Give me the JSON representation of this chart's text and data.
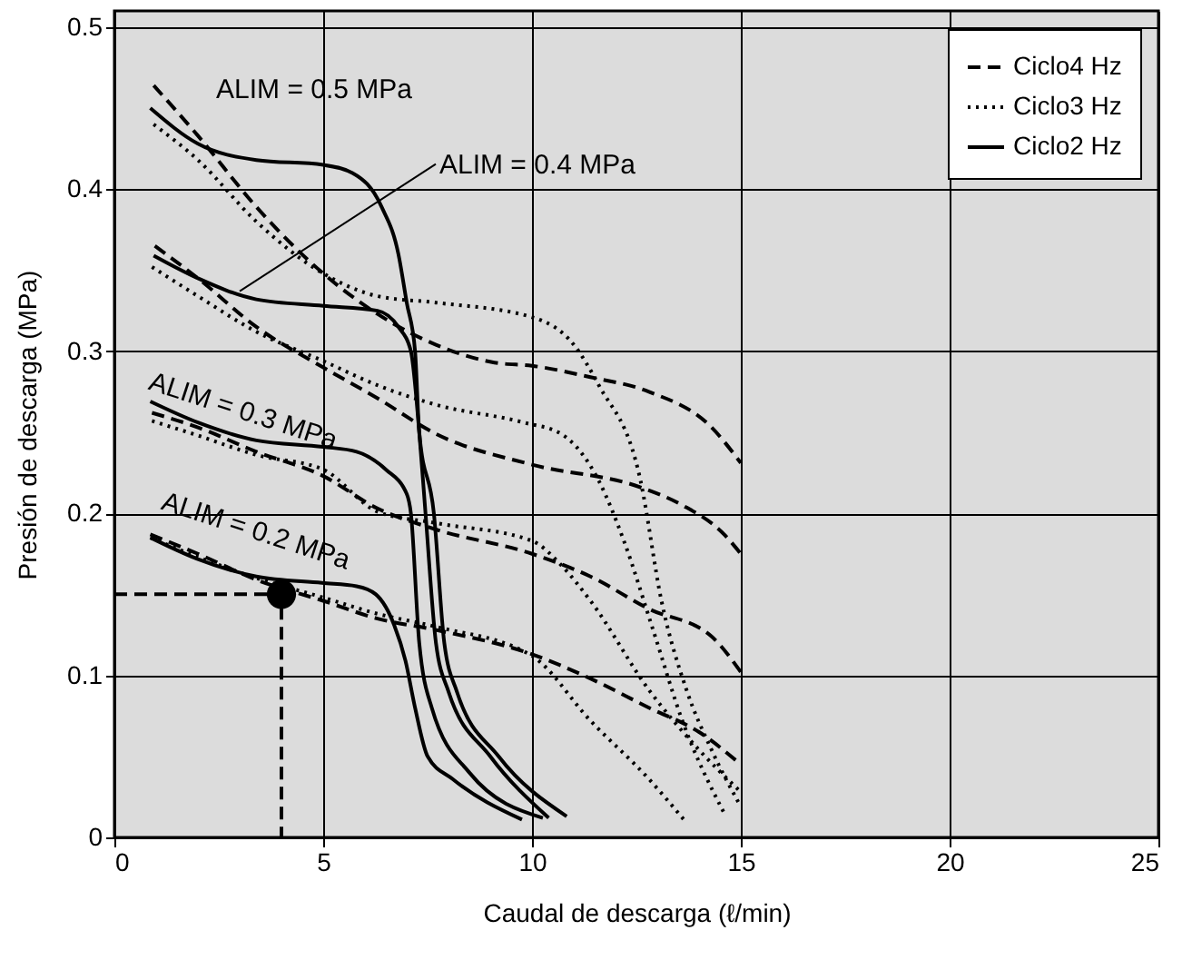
{
  "chart_data": {
    "type": "line",
    "xlabel": "Caudal de descarga (ℓ/min)",
    "ylabel": "Presión de descarga (MPa)",
    "xlim": [
      0,
      25
    ],
    "xticks": [
      0,
      5,
      10,
      15,
      20,
      25
    ],
    "ylim": [
      0,
      0.51
    ],
    "yticks": [
      0,
      0.1,
      0.2,
      0.3,
      0.4,
      0.5
    ],
    "grid": true,
    "legend": "top right",
    "series": [
      {
        "name": "Ciclo4 Hz",
        "color": "#000000",
        "line_style": "dashed",
        "x": [
          0.94,
          2,
          3.4,
          5,
          6.3,
          7.7,
          9.1,
          10,
          11.4,
          12.8,
          14.3,
          15
        ],
        "values": [
          0.464,
          0.433,
          0.389,
          0.348,
          0.323,
          0.304,
          0.293,
          0.291,
          0.284,
          0.275,
          0.253,
          0.231
        ]
      },
      {
        "color": "#000000",
        "line_style": "dashed",
        "x": [
          0.97,
          2,
          3.4,
          5,
          6.3,
          7.7,
          10,
          12.6,
          13.6,
          14.6,
          15
        ],
        "values": [
          0.365,
          0.345,
          0.315,
          0.29,
          0.271,
          0.249,
          0.23,
          0.216,
          0.205,
          0.187,
          0.175
        ]
      },
      {
        "color": "#000000",
        "line_style": "dashed",
        "x": [
          0.9,
          2,
          3.4,
          5,
          6.3,
          7.7,
          10,
          11.4,
          12.8,
          14.3,
          15
        ],
        "values": [
          0.262,
          0.253,
          0.238,
          0.223,
          0.203,
          0.19,
          0.175,
          0.161,
          0.141,
          0.124,
          0.102
        ]
      },
      {
        "color": "#000000",
        "line_style": "dashed",
        "x": [
          0.86,
          2,
          3.4,
          5,
          6.3,
          7.7,
          10,
          11.4,
          12.8,
          14,
          15
        ],
        "values": [
          0.187,
          0.175,
          0.159,
          0.146,
          0.135,
          0.128,
          0.113,
          0.098,
          0.08,
          0.065,
          0.045
        ]
      },
      {
        "name": "Ciclo3 Hz",
        "color": "#000000",
        "line_style": "dotted",
        "x": [
          0.94,
          2,
          3.4,
          5,
          6.3,
          7.7,
          10,
          11,
          11.6,
          12.6,
          13.1,
          13.7,
          14.3,
          15
        ],
        "values": [
          0.44,
          0.418,
          0.38,
          0.348,
          0.334,
          0.33,
          0.321,
          0.304,
          0.279,
          0.22,
          0.146,
          0.091,
          0.054,
          0.019
        ]
      },
      {
        "color": "#000000",
        "line_style": "dotted",
        "x": [
          0.9,
          2,
          3.4,
          5,
          6.3,
          7.7,
          9.8,
          10.7,
          11.6,
          12.2,
          12.9,
          13.6,
          14.6
        ],
        "values": [
          0.352,
          0.334,
          0.312,
          0.294,
          0.279,
          0.267,
          0.256,
          0.249,
          0.22,
          0.183,
          0.128,
          0.072,
          0.015
        ]
      },
      {
        "color": "#000000",
        "line_style": "dotted",
        "x": [
          0.9,
          2,
          3.4,
          5,
          6.3,
          7.7,
          10,
          10.7,
          11.4,
          12.8,
          14,
          15
        ],
        "values": [
          0.257,
          0.248,
          0.236,
          0.227,
          0.201,
          0.194,
          0.183,
          0.168,
          0.146,
          0.091,
          0.054,
          0.028
        ]
      },
      {
        "color": "#000000",
        "line_style": "dotted",
        "x": [
          0.86,
          2,
          3.4,
          5,
          6.3,
          7.7,
          10,
          11.4,
          12.8,
          13.7
        ],
        "values": [
          0.185,
          0.173,
          0.16,
          0.148,
          0.138,
          0.13,
          0.112,
          0.072,
          0.036,
          0.009
        ]
      },
      {
        "name": "Ciclo2 Hz",
        "color": "#000000",
        "line_style": "solid",
        "x": [
          0.86,
          2,
          3.4,
          5,
          5.7,
          6.4,
          6.8,
          7,
          7.2,
          7.3,
          7.65,
          7.9,
          8.2,
          9.2,
          10.83
        ],
        "values": [
          0.45,
          0.428,
          0.418,
          0.415,
          0.41,
          0.389,
          0.36,
          0.33,
          0.3,
          0.25,
          0.2,
          0.12,
          0.09,
          0.05,
          0.013
        ]
      },
      {
        "color": "#000000",
        "line_style": "solid",
        "x": [
          0.94,
          2,
          3.4,
          5,
          6.3,
          6.8,
          7.1,
          7.3,
          7.45,
          7.7,
          8,
          9,
          10.4
        ],
        "values": [
          0.359,
          0.345,
          0.332,
          0.328,
          0.325,
          0.315,
          0.3,
          0.25,
          0.2,
          0.12,
          0.09,
          0.05,
          0.012
        ]
      },
      {
        "color": "#000000",
        "line_style": "solid",
        "x": [
          0.86,
          2,
          3.4,
          5,
          5.8,
          6.5,
          7,
          7.1,
          7.3,
          7.6,
          8.5,
          10.26
        ],
        "values": [
          0.269,
          0.256,
          0.245,
          0.241,
          0.238,
          0.227,
          0.212,
          0.2,
          0.12,
          0.08,
          0.04,
          0.012
        ]
      },
      {
        "color": "#000000",
        "line_style": "solid",
        "x": [
          0.86,
          1.97,
          3.4,
          4.97,
          5.8,
          6.26,
          6.7,
          6.97,
          7.2,
          7.5,
          8.1,
          9.76
        ],
        "values": [
          0.185,
          0.172,
          0.161,
          0.157,
          0.155,
          0.15,
          0.131,
          0.109,
          0.08,
          0.05,
          0.036,
          0.011
        ]
      },
      {
        "type": "line",
        "color": "#000000",
        "line_style": "dashed",
        "x": [
          0,
          4,
          4
        ],
        "values": [
          0.15,
          0.15,
          0
        ]
      },
      {
        "type": "scatter",
        "color": "#000000",
        "marker": "circle",
        "x": [
          4
        ],
        "values": [
          0.15
        ]
      }
    ],
    "annotations": [
      "ALIM = 0.5 MPa",
      {
        "text": "ALIM = 0.4 MPa",
        "x": 3.0,
        "y": 0.337
      },
      "ALIM = 0.3 MPa",
      "ALIM = 0.2 MPa"
    ]
  }
}
